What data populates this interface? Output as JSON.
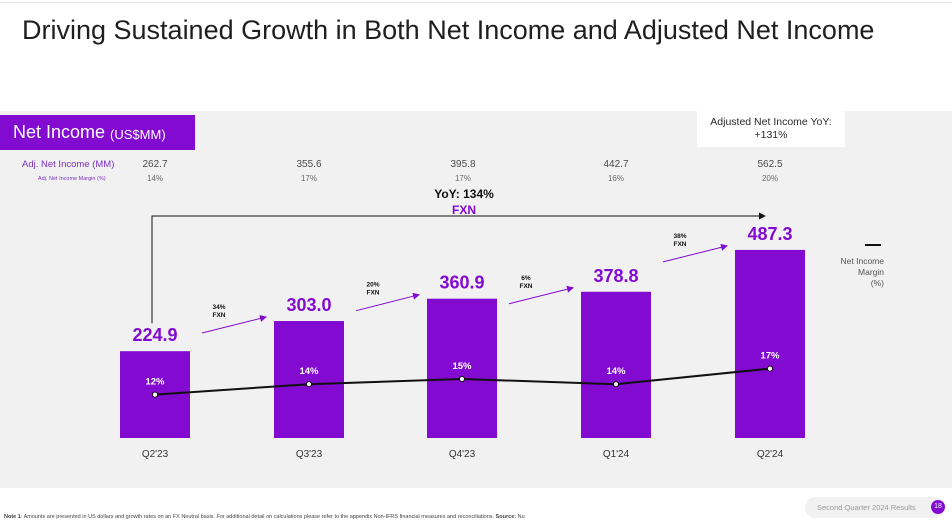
{
  "title": "Driving Sustained Growth in Both Net Income and Adjusted Net Income",
  "section": {
    "label": "Net Income",
    "unit": "(US$MM)"
  },
  "yoy_box": {
    "line1": "Adjusted Net Income YoY:",
    "line2": "+131%"
  },
  "rows": {
    "adj_label": "Adj. Net Income (MM)",
    "margin_label": "Adj. Net Income Margin (%)"
  },
  "yoy_overall": {
    "line1": "YoY: 134%",
    "line2": "FXN"
  },
  "legend": {
    "label_lines": [
      "Net Income",
      "Margin",
      "(%)"
    ]
  },
  "footer": {
    "text": "Second Quarter 2024 Results",
    "page": "18",
    "note_bold": "Note 1",
    "note_text": ": Amounts are presented in US dollars and growth rates on an FX Neutral basis. For additional detail on calculations please refer to the appendix Non-IFRS financial measures and reconciliations.",
    "source_bold": "Source:",
    "source_text": "Nu"
  },
  "colors": {
    "bar": "#820ad1",
    "accent_text": "#820ad1",
    "line": "#111111",
    "background": "#f1f1f1"
  },
  "chart_data": {
    "type": "bar",
    "categories": [
      "Q2'23",
      "Q3'23",
      "Q4'23",
      "Q1'24",
      "Q2'24"
    ],
    "series": [
      {
        "name": "Net Income",
        "values": [
          224.9,
          303.0,
          360.9,
          378.8,
          487.3
        ]
      },
      {
        "name": "Net Income Margin (%)",
        "values": [
          12,
          14,
          15,
          14,
          17
        ]
      }
    ],
    "value_labels": [
      "224.9",
      "303.0",
      "360.9",
      "378.8",
      "487.3"
    ],
    "margin_labels": [
      "12%",
      "14%",
      "15%",
      "14%",
      "17%"
    ],
    "adj_net_income": [
      "262.7",
      "355.6",
      "395.8",
      "442.7",
      "562.5"
    ],
    "adj_margin": [
      "14%",
      "17%",
      "17%",
      "16%",
      "20%"
    ],
    "growth_labels": [
      {
        "pct": "34%",
        "fxn": "FXN"
      },
      {
        "pct": "20%",
        "fxn": "FXN"
      },
      {
        "pct": "6%",
        "fxn": "FXN"
      },
      {
        "pct": "38%",
        "fxn": "FXN"
      }
    ]
  }
}
